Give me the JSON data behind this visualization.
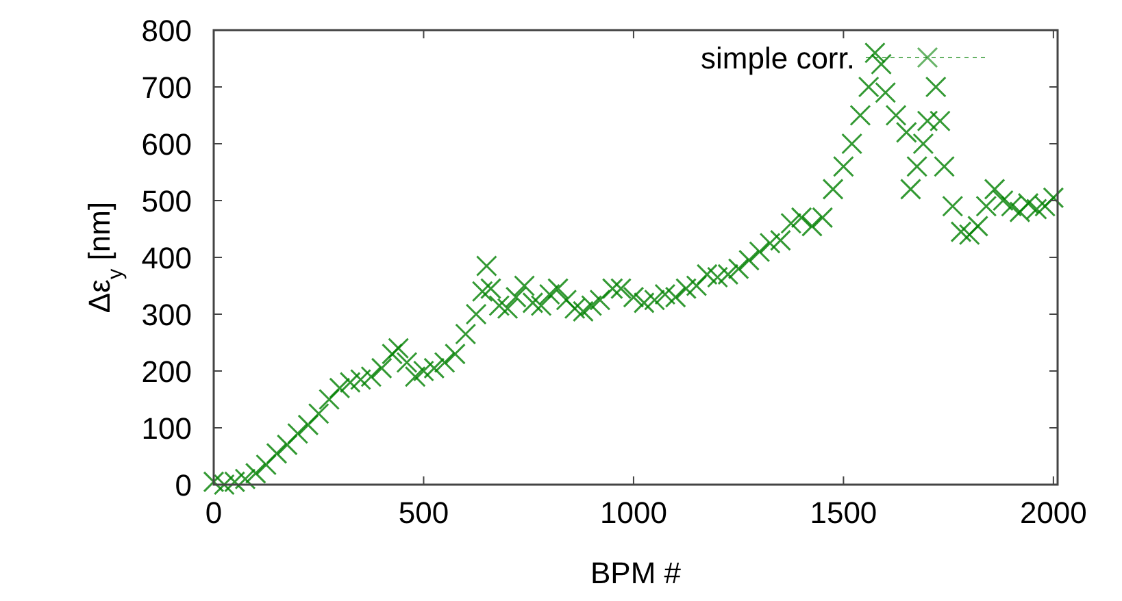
{
  "chart_data": {
    "type": "scatter",
    "xlabel": "BPM #",
    "ylabel": "Δε$_{y}$ [nm]",
    "xlim": [
      0,
      2010
    ],
    "ylim": [
      0,
      800
    ],
    "xticks": [
      0,
      500,
      1000,
      1500,
      2000
    ],
    "yticks": [
      0,
      100,
      200,
      300,
      400,
      500,
      600,
      700,
      800
    ],
    "marker": "cross",
    "legend": "top right",
    "grid": false,
    "x": [
      0,
      25,
      50,
      75,
      100,
      125,
      150,
      175,
      200,
      225,
      250,
      275,
      300,
      325,
      350,
      375,
      400,
      425,
      440,
      460,
      480,
      500,
      525,
      550,
      575,
      600,
      625,
      640,
      650,
      660,
      680,
      700,
      720,
      740,
      760,
      780,
      800,
      820,
      840,
      860,
      880,
      900,
      920,
      950,
      970,
      1000,
      1025,
      1050,
      1075,
      1100,
      1125,
      1150,
      1175,
      1200,
      1225,
      1250,
      1275,
      1300,
      1325,
      1350,
      1375,
      1400,
      1425,
      1450,
      1475,
      1500,
      1520,
      1540,
      1560,
      1575,
      1590,
      1600,
      1625,
      1650,
      1660,
      1675,
      1690,
      1700,
      1720,
      1730,
      1740,
      1760,
      1780,
      1800,
      1820,
      1840,
      1860,
      1880,
      1900,
      1920,
      1940,
      1960,
      1980,
      2000
    ],
    "series": [
      {
        "name": "simple corr.",
        "color": "#008000",
        "values": [
          5,
          0,
          5,
          10,
          20,
          35,
          55,
          70,
          90,
          105,
          125,
          150,
          170,
          180,
          185,
          190,
          205,
          230,
          240,
          215,
          190,
          200,
          205,
          215,
          230,
          265,
          300,
          340,
          385,
          345,
          315,
          310,
          330,
          350,
          320,
          315,
          335,
          345,
          325,
          310,
          305,
          315,
          325,
          345,
          345,
          330,
          320,
          325,
          335,
          330,
          345,
          350,
          370,
          365,
          370,
          380,
          395,
          410,
          425,
          430,
          460,
          470,
          455,
          470,
          520,
          560,
          600,
          650,
          700,
          760,
          740,
          690,
          650,
          620,
          520,
          560,
          600,
          640,
          700,
          640,
          560,
          490,
          445,
          440,
          455,
          490,
          520,
          500,
          490,
          480,
          495,
          485,
          490,
          505
        ]
      }
    ]
  }
}
